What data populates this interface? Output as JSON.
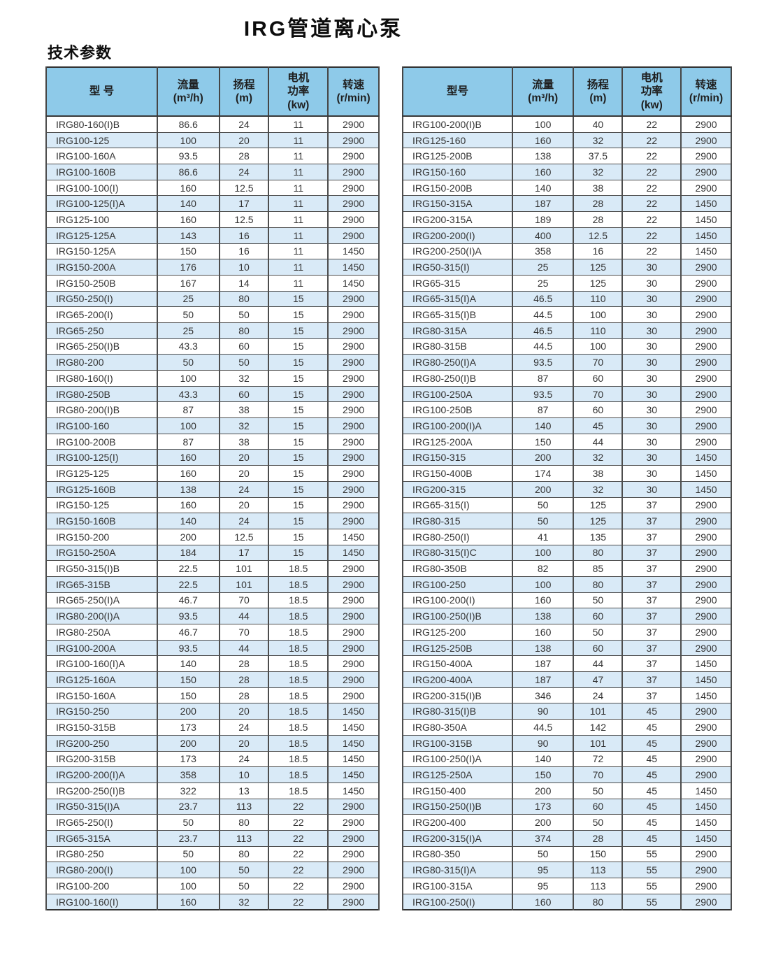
{
  "page": {
    "title": "IRG管道离心泵",
    "subtitle": "技术参数"
  },
  "columns": {
    "model_left": "型  号",
    "model_right": "型号",
    "flow_l1": "流量",
    "flow_l2": "(m³/h)",
    "head_l1": "扬程",
    "head_l2": "(m)",
    "power_l1": "电机",
    "power_l2": "功率",
    "power_l3": "(kw)",
    "speed_l1": "转速",
    "speed_l2": "(r/min)"
  },
  "colors": {
    "header_bg": "#8ecae9",
    "row_alt_bg": "#d9eaf7",
    "border": "#4d4d4d"
  },
  "tables": [
    {
      "rows": [
        [
          "IRG80-160(I)B",
          "86.6",
          "24",
          "11",
          "2900"
        ],
        [
          "IRG100-125",
          "100",
          "20",
          "11",
          "2900"
        ],
        [
          "IRG100-160A",
          "93.5",
          "28",
          "11",
          "2900"
        ],
        [
          "IRG100-160B",
          "86.6",
          "24",
          "11",
          "2900"
        ],
        [
          "IRG100-100(I)",
          "160",
          "12.5",
          "11",
          "2900"
        ],
        [
          "IRG100-125(I)A",
          "140",
          "17",
          "11",
          "2900"
        ],
        [
          "IRG125-100",
          "160",
          "12.5",
          "11",
          "2900"
        ],
        [
          "IRG125-125A",
          "143",
          "16",
          "11",
          "2900"
        ],
        [
          "IRG150-125A",
          "150",
          "16",
          "11",
          "1450"
        ],
        [
          "IRG150-200A",
          "176",
          "10",
          "11",
          "1450"
        ],
        [
          "IRG150-250B",
          "167",
          "14",
          "11",
          "1450"
        ],
        [
          "IRG50-250(I)",
          "25",
          "80",
          "15",
          "2900"
        ],
        [
          "IRG65-200(I)",
          "50",
          "50",
          "15",
          "2900"
        ],
        [
          "IRG65-250",
          "25",
          "80",
          "15",
          "2900"
        ],
        [
          "IRG65-250(I)B",
          "43.3",
          "60",
          "15",
          "2900"
        ],
        [
          "IRG80-200",
          "50",
          "50",
          "15",
          "2900"
        ],
        [
          "IRG80-160(I)",
          "100",
          "32",
          "15",
          "2900"
        ],
        [
          "IRG80-250B",
          "43.3",
          "60",
          "15",
          "2900"
        ],
        [
          "IRG80-200(I)B",
          "87",
          "38",
          "15",
          "2900"
        ],
        [
          "IRG100-160",
          "100",
          "32",
          "15",
          "2900"
        ],
        [
          "IRG100-200B",
          "87",
          "38",
          "15",
          "2900"
        ],
        [
          "IRG100-125(I)",
          "160",
          "20",
          "15",
          "2900"
        ],
        [
          "IRG125-125",
          "160",
          "20",
          "15",
          "2900"
        ],
        [
          "IRG125-160B",
          "138",
          "24",
          "15",
          "2900"
        ],
        [
          "IRG150-125",
          "160",
          "20",
          "15",
          "2900"
        ],
        [
          "IRG150-160B",
          "140",
          "24",
          "15",
          "2900"
        ],
        [
          "IRG150-200",
          "200",
          "12.5",
          "15",
          "1450"
        ],
        [
          "IRG150-250A",
          "184",
          "17",
          "15",
          "1450"
        ],
        [
          "IRG50-315(I)B",
          "22.5",
          "101",
          "18.5",
          "2900"
        ],
        [
          "IRG65-315B",
          "22.5",
          "101",
          "18.5",
          "2900"
        ],
        [
          "IRG65-250(I)A",
          "46.7",
          "70",
          "18.5",
          "2900"
        ],
        [
          "IRG80-200(I)A",
          "93.5",
          "44",
          "18.5",
          "2900"
        ],
        [
          "IRG80-250A",
          "46.7",
          "70",
          "18.5",
          "2900"
        ],
        [
          "IRG100-200A",
          "93.5",
          "44",
          "18.5",
          "2900"
        ],
        [
          "IRG100-160(I)A",
          "140",
          "28",
          "18.5",
          "2900"
        ],
        [
          "IRG125-160A",
          "150",
          "28",
          "18.5",
          "2900"
        ],
        [
          "IRG150-160A",
          "150",
          "28",
          "18.5",
          "2900"
        ],
        [
          "IRG150-250",
          "200",
          "20",
          "18.5",
          "1450"
        ],
        [
          "IRG150-315B",
          "173",
          "24",
          "18.5",
          "1450"
        ],
        [
          "IRG200-250",
          "200",
          "20",
          "18.5",
          "1450"
        ],
        [
          "IRG200-315B",
          "173",
          "24",
          "18.5",
          "1450"
        ],
        [
          "IRG200-200(I)A",
          "358",
          "10",
          "18.5",
          "1450"
        ],
        [
          "IRG200-250(I)B",
          "322",
          "13",
          "18.5",
          "1450"
        ],
        [
          "IRG50-315(I)A",
          "23.7",
          "113",
          "22",
          "2900"
        ],
        [
          "IRG65-250(I)",
          "50",
          "80",
          "22",
          "2900"
        ],
        [
          "IRG65-315A",
          "23.7",
          "113",
          "22",
          "2900"
        ],
        [
          "IRG80-250",
          "50",
          "80",
          "22",
          "2900"
        ],
        [
          "IRG80-200(I)",
          "100",
          "50",
          "22",
          "2900"
        ],
        [
          "IRG100-200",
          "100",
          "50",
          "22",
          "2900"
        ],
        [
          "IRG100-160(I)",
          "160",
          "32",
          "22",
          "2900"
        ]
      ]
    },
    {
      "rows": [
        [
          "IRG100-200(I)B",
          "100",
          "40",
          "22",
          "2900"
        ],
        [
          "IRG125-160",
          "160",
          "32",
          "22",
          "2900"
        ],
        [
          "IRG125-200B",
          "138",
          "37.5",
          "22",
          "2900"
        ],
        [
          "IRG150-160",
          "160",
          "32",
          "22",
          "2900"
        ],
        [
          "IRG150-200B",
          "140",
          "38",
          "22",
          "2900"
        ],
        [
          "IRG150-315A",
          "187",
          "28",
          "22",
          "1450"
        ],
        [
          "IRG200-315A",
          "189",
          "28",
          "22",
          "1450"
        ],
        [
          "IRG200-200(I)",
          "400",
          "12.5",
          "22",
          "1450"
        ],
        [
          "IRG200-250(I)A",
          "358",
          "16",
          "22",
          "1450"
        ],
        [
          "IRG50-315(I)",
          "25",
          "125",
          "30",
          "2900"
        ],
        [
          "IRG65-315",
          "25",
          "125",
          "30",
          "2900"
        ],
        [
          "IRG65-315(I)A",
          "46.5",
          "110",
          "30",
          "2900"
        ],
        [
          "IRG65-315(I)B",
          "44.5",
          "100",
          "30",
          "2900"
        ],
        [
          "IRG80-315A",
          "46.5",
          "110",
          "30",
          "2900"
        ],
        [
          "IRG80-315B",
          "44.5",
          "100",
          "30",
          "2900"
        ],
        [
          "IRG80-250(I)A",
          "93.5",
          "70",
          "30",
          "2900"
        ],
        [
          "IRG80-250(I)B",
          "87",
          "60",
          "30",
          "2900"
        ],
        [
          "IRG100-250A",
          "93.5",
          "70",
          "30",
          "2900"
        ],
        [
          "IRG100-250B",
          "87",
          "60",
          "30",
          "2900"
        ],
        [
          "IRG100-200(I)A",
          "140",
          "45",
          "30",
          "2900"
        ],
        [
          "IRG125-200A",
          "150",
          "44",
          "30",
          "2900"
        ],
        [
          "IRG150-315",
          "200",
          "32",
          "30",
          "1450"
        ],
        [
          "IRG150-400B",
          "174",
          "38",
          "30",
          "1450"
        ],
        [
          "IRG200-315",
          "200",
          "32",
          "30",
          "1450"
        ],
        [
          "IRG65-315(I)",
          "50",
          "125",
          "37",
          "2900"
        ],
        [
          "IRG80-315",
          "50",
          "125",
          "37",
          "2900"
        ],
        [
          "IRG80-250(I)",
          "41",
          "135",
          "37",
          "2900"
        ],
        [
          "IRG80-315(I)C",
          "100",
          "80",
          "37",
          "2900"
        ],
        [
          "IRG80-350B",
          "82",
          "85",
          "37",
          "2900"
        ],
        [
          "IRG100-250",
          "100",
          "80",
          "37",
          "2900"
        ],
        [
          "IRG100-200(I)",
          "160",
          "50",
          "37",
          "2900"
        ],
        [
          "IRG100-250(I)B",
          "138",
          "60",
          "37",
          "2900"
        ],
        [
          "IRG125-200",
          "160",
          "50",
          "37",
          "2900"
        ],
        [
          "IRG125-250B",
          "138",
          "60",
          "37",
          "2900"
        ],
        [
          "IRG150-400A",
          "187",
          "44",
          "37",
          "1450"
        ],
        [
          "IRG200-400A",
          "187",
          "47",
          "37",
          "1450"
        ],
        [
          "IRG200-315(I)B",
          "346",
          "24",
          "37",
          "1450"
        ],
        [
          "IRG80-315(I)B",
          "90",
          "101",
          "45",
          "2900"
        ],
        [
          "IRG80-350A",
          "44.5",
          "142",
          "45",
          "2900"
        ],
        [
          "IRG100-315B",
          "90",
          "101",
          "45",
          "2900"
        ],
        [
          "IRG100-250(I)A",
          "140",
          "72",
          "45",
          "2900"
        ],
        [
          "IRG125-250A",
          "150",
          "70",
          "45",
          "2900"
        ],
        [
          "IRG150-400",
          "200",
          "50",
          "45",
          "1450"
        ],
        [
          "IRG150-250(I)B",
          "173",
          "60",
          "45",
          "1450"
        ],
        [
          "IRG200-400",
          "200",
          "50",
          "45",
          "1450"
        ],
        [
          "IRG200-315(I)A",
          "374",
          "28",
          "45",
          "1450"
        ],
        [
          "IRG80-350",
          "50",
          "150",
          "55",
          "2900"
        ],
        [
          "IRG80-315(I)A",
          "95",
          "113",
          "55",
          "2900"
        ],
        [
          "IRG100-315A",
          "95",
          "113",
          "55",
          "2900"
        ],
        [
          "IRG100-250(I)",
          "160",
          "80",
          "55",
          "2900"
        ]
      ]
    }
  ]
}
